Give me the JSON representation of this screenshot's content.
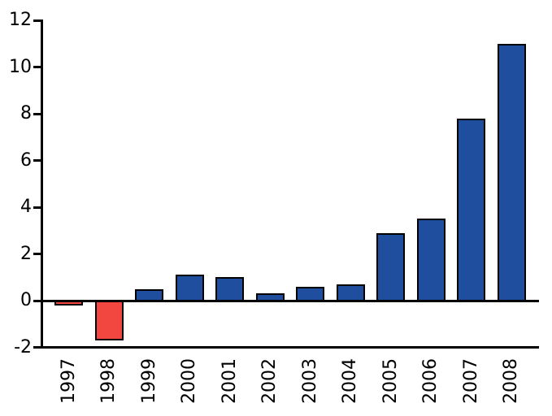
{
  "chart_data": {
    "type": "bar",
    "title": "",
    "categories": [
      "1997",
      "1998",
      "1999",
      "2000",
      "2001",
      "2002",
      "2003",
      "2004",
      "2005",
      "2006",
      "2007",
      "2008"
    ],
    "values": [
      -0.2,
      -1.7,
      0.5,
      1.1,
      1.0,
      0.3,
      0.6,
      0.7,
      2.9,
      3.5,
      7.8,
      11.0
    ],
    "yticks": [
      12,
      10,
      8,
      6,
      4,
      2,
      0,
      -2
    ],
    "ytick_labels": [
      "12",
      "10",
      "8",
      "6",
      "4",
      "2",
      "0",
      "-2"
    ],
    "ylim": [
      -2,
      12
    ],
    "xlabel": "",
    "ylabel": "",
    "grid": false,
    "legend": null,
    "colors": {
      "positive_bar": "#1f4e9e",
      "negative_bar": "#f24741",
      "bar_border": "#000000",
      "axis": "#000000",
      "text": "#000000",
      "background": "#ffffff"
    }
  }
}
